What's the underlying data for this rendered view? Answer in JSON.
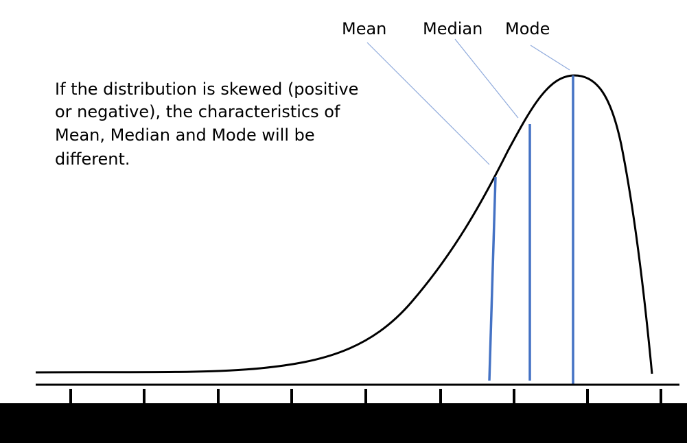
{
  "labels": {
    "mean": "Mean",
    "median": "Median",
    "mode": "Mode"
  },
  "description": {
    "lines": [
      "If the distribution is skewed (positive",
      "or negative), the characteristics of",
      "Mean, Median and Mode will be",
      "different."
    ]
  },
  "colors": {
    "background": "#ffffff",
    "bottom_band": "#000000",
    "curve": "#000000",
    "axis": "#000000",
    "marker_lines": "#4472c4",
    "leader_lines": "#8faadc",
    "text": "#000000"
  }
}
